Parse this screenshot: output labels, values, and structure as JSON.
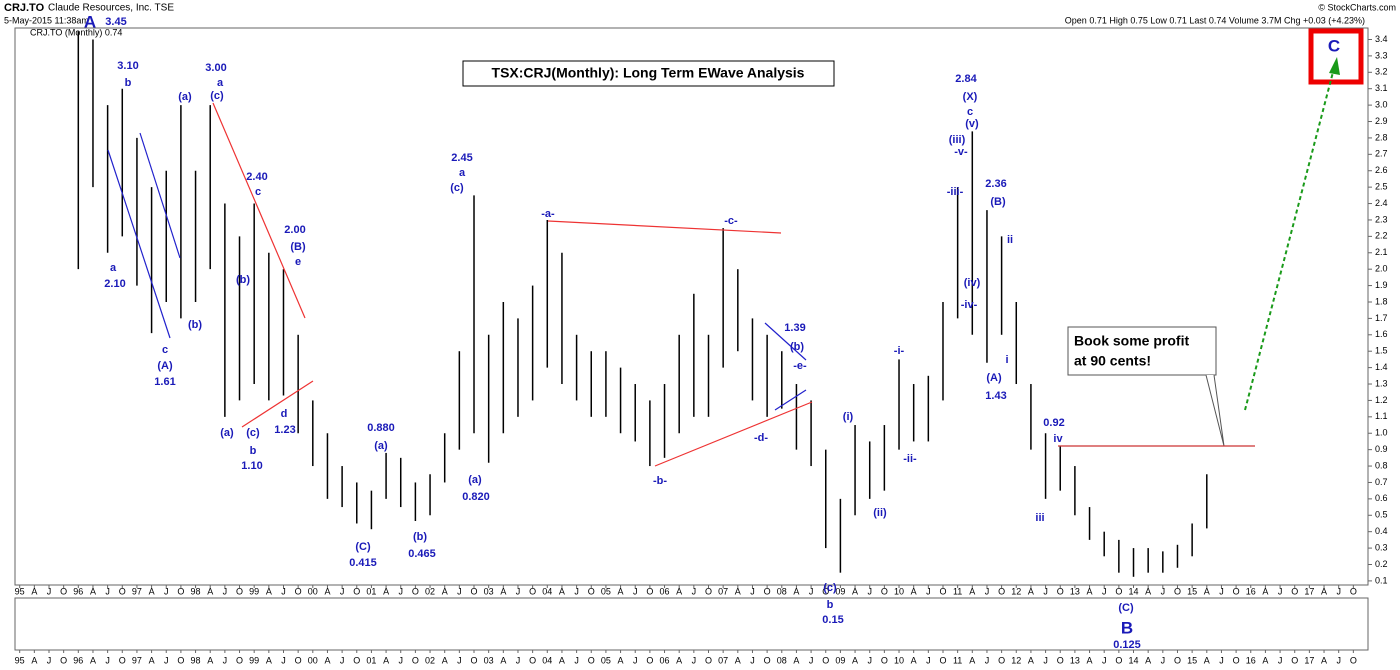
{
  "chart_data": {
    "type": "ohlc",
    "header": {
      "symbol": "CRJ.TO",
      "company": "Claude Resources, Inc. TSE",
      "timestamp": "5-May-2015 11:38am",
      "source": "© StockCharts.com",
      "legend": "CRJ.TO (Monthly) 0.74",
      "quote": "Open 0.71 High 0.75 Low 0.71 Last 0.74 Volume 3.7M Chg +0.03 (+4.23%)"
    },
    "title": "TSX:CRJ(Monthly): Long Term EWave Analysis",
    "callout": [
      "Book some profit",
      "at 90 cents!"
    ],
    "color": "#000000",
    "x": [
      1996.0,
      1996.25,
      1996.5,
      1996.75,
      1997.0,
      1997.25,
      1997.5,
      1997.75,
      1998.0,
      1998.25,
      1998.5,
      1998.75,
      1999.0,
      1999.25,
      1999.5,
      1999.75,
      2000.0,
      2000.25,
      2000.5,
      2000.75,
      2001.0,
      2001.25,
      2001.5,
      2001.75,
      2002.0,
      2002.25,
      2002.5,
      2002.75,
      2003.0,
      2003.25,
      2003.5,
      2003.75,
      2004.0,
      2004.25,
      2004.5,
      2004.75,
      2005.0,
      2005.25,
      2005.5,
      2005.75,
      2006.0,
      2006.25,
      2006.5,
      2006.75,
      2007.0,
      2007.25,
      2007.5,
      2007.75,
      2008.0,
      2008.25,
      2008.5,
      2008.75,
      2009.0,
      2009.25,
      2009.5,
      2009.75,
      2010.0,
      2010.25,
      2010.5,
      2010.75,
      2011.0,
      2011.25,
      2011.5,
      2011.75,
      2012.0,
      2012.25,
      2012.5,
      2012.75,
      2013.0,
      2013.25,
      2013.5,
      2013.75,
      2014.0,
      2014.25,
      2014.5,
      2014.75,
      2015.0,
      2015.25
    ],
    "high": [
      3.45,
      3.4,
      3.0,
      3.1,
      2.8,
      2.5,
      2.6,
      3.0,
      2.6,
      3.0,
      2.4,
      2.2,
      2.4,
      2.1,
      2.0,
      1.6,
      1.2,
      1.0,
      0.8,
      0.7,
      0.65,
      0.88,
      0.85,
      0.7,
      0.75,
      1.0,
      1.5,
      2.45,
      1.6,
      1.8,
      1.7,
      1.9,
      2.3,
      2.1,
      1.6,
      1.5,
      1.5,
      1.4,
      1.3,
      1.2,
      1.3,
      1.6,
      1.85,
      1.6,
      2.25,
      2.0,
      1.7,
      1.6,
      1.5,
      1.3,
      1.2,
      0.9,
      0.6,
      1.05,
      0.95,
      1.05,
      1.45,
      1.3,
      1.35,
      1.8,
      2.5,
      2.84,
      2.36,
      2.2,
      1.8,
      1.3,
      1.0,
      0.92,
      0.8,
      0.55,
      0.4,
      0.35,
      0.3,
      0.3,
      0.28,
      0.32,
      0.45,
      0.75
    ],
    "low": [
      2.0,
      2.5,
      2.1,
      2.2,
      1.9,
      1.61,
      1.8,
      1.7,
      1.8,
      2.0,
      1.1,
      1.2,
      1.3,
      1.2,
      1.23,
      1.0,
      0.8,
      0.6,
      0.55,
      0.45,
      0.415,
      0.6,
      0.55,
      0.465,
      0.5,
      0.7,
      0.9,
      1.0,
      0.82,
      1.0,
      1.1,
      1.2,
      1.4,
      1.3,
      1.2,
      1.1,
      1.1,
      1.0,
      0.95,
      0.8,
      0.85,
      1.0,
      1.1,
      1.1,
      1.4,
      1.5,
      1.2,
      1.1,
      1.15,
      0.9,
      0.8,
      0.3,
      0.15,
      0.5,
      0.6,
      0.65,
      0.9,
      0.95,
      0.95,
      1.2,
      1.7,
      1.6,
      1.43,
      1.6,
      1.3,
      0.9,
      0.6,
      0.65,
      0.5,
      0.35,
      0.25,
      0.15,
      0.125,
      0.15,
      0.15,
      0.18,
      0.25,
      0.42
    ],
    "xlim": [
      1994.92,
      2018.0
    ],
    "ylim": [
      0.075,
      3.47
    ],
    "yticks": [
      0.1,
      0.2,
      0.3,
      0.4,
      0.5,
      0.6,
      0.7,
      0.8,
      0.9,
      {
        "value": 1,
        "label": "1.0"
      },
      1.1,
      1.2,
      1.3,
      1.4,
      1.5,
      1.6,
      1.7,
      1.8,
      1.9,
      {
        "value": 2,
        "label": "2.0"
      },
      2.1,
      2.2,
      2.3,
      2.4,
      2.5,
      2.6,
      2.7,
      2.8,
      2.9,
      {
        "value": 3,
        "label": "3.0"
      },
      3.1,
      3.2,
      3.3,
      3.4
    ],
    "xticks": [
      {
        "value": 1995,
        "label": "95"
      },
      {
        "value": 1995.25,
        "label": "A"
      },
      {
        "value": 1995.5,
        "label": "J"
      },
      {
        "value": 1995.75,
        "label": "O"
      },
      {
        "value": 1996,
        "label": "96"
      },
      {
        "value": 1996.25,
        "label": "A"
      },
      {
        "value": 1996.5,
        "label": "J"
      },
      {
        "value": 1996.75,
        "label": "O"
      },
      {
        "value": 1997,
        "label": "97"
      },
      {
        "value": 1997.25,
        "label": "A"
      },
      {
        "value": 1997.5,
        "label": "J"
      },
      {
        "value": 1997.75,
        "label": "O"
      },
      {
        "value": 1998,
        "label": "98"
      },
      {
        "value": 1998.25,
        "label": "A"
      },
      {
        "value": 1998.5,
        "label": "J"
      },
      {
        "value": 1998.75,
        "label": "O"
      },
      {
        "value": 1999,
        "label": "99"
      },
      {
        "value": 1999.25,
        "label": "A"
      },
      {
        "value": 1999.5,
        "label": "J"
      },
      {
        "value": 1999.75,
        "label": "O"
      },
      {
        "value": 2000,
        "label": "00"
      },
      {
        "value": 2000.25,
        "label": "A"
      },
      {
        "value": 2000.5,
        "label": "J"
      },
      {
        "value": 2000.75,
        "label": "O"
      },
      {
        "value": 2001,
        "label": "01"
      },
      {
        "value": 2001.25,
        "label": "A"
      },
      {
        "value": 2001.5,
        "label": "J"
      },
      {
        "value": 2001.75,
        "label": "O"
      },
      {
        "value": 2002,
        "label": "02"
      },
      {
        "value": 2002.25,
        "label": "A"
      },
      {
        "value": 2002.5,
        "label": "J"
      },
      {
        "value": 2002.75,
        "label": "O"
      },
      {
        "value": 2003,
        "label": "03"
      },
      {
        "value": 2003.25,
        "label": "A"
      },
      {
        "value": 2003.5,
        "label": "J"
      },
      {
        "value": 2003.75,
        "label": "O"
      },
      {
        "value": 2004,
        "label": "04"
      },
      {
        "value": 2004.25,
        "label": "A"
      },
      {
        "value": 2004.5,
        "label": "J"
      },
      {
        "value": 2004.75,
        "label": "O"
      },
      {
        "value": 2005,
        "label": "05"
      },
      {
        "value": 2005.25,
        "label": "A"
      },
      {
        "value": 2005.5,
        "label": "J"
      },
      {
        "value": 2005.75,
        "label": "O"
      },
      {
        "value": 2006,
        "label": "06"
      },
      {
        "value": 2006.25,
        "label": "A"
      },
      {
        "value": 2006.5,
        "label": "J"
      },
      {
        "value": 2006.75,
        "label": "O"
      },
      {
        "value": 2007,
        "label": "07"
      },
      {
        "value": 2007.25,
        "label": "A"
      },
      {
        "value": 2007.5,
        "label": "J"
      },
      {
        "value": 2007.75,
        "label": "O"
      },
      {
        "value": 2008,
        "label": "08"
      },
      {
        "value": 2008.25,
        "label": "A"
      },
      {
        "value": 2008.5,
        "label": "J"
      },
      {
        "value": 2008.75,
        "label": "O"
      },
      {
        "value": 2009,
        "label": "09"
      },
      {
        "value": 2009.25,
        "label": "A"
      },
      {
        "value": 2009.5,
        "label": "J"
      },
      {
        "value": 2009.75,
        "label": "O"
      },
      {
        "value": 2010,
        "label": "10"
      },
      {
        "value": 2010.25,
        "label": "A"
      },
      {
        "value": 2010.5,
        "label": "J"
      },
      {
        "value": 2010.75,
        "label": "O"
      },
      {
        "value": 2011,
        "label": "11"
      },
      {
        "value": 2011.25,
        "label": "A"
      },
      {
        "value": 2011.5,
        "label": "J"
      },
      {
        "value": 2011.75,
        "label": "O"
      },
      {
        "value": 2012,
        "label": "12"
      },
      {
        "value": 2012.25,
        "label": "A"
      },
      {
        "value": 2012.5,
        "label": "J"
      },
      {
        "value": 2012.75,
        "label": "O"
      },
      {
        "value": 2013,
        "label": "13"
      },
      {
        "value": 2013.25,
        "label": "A"
      },
      {
        "value": 2013.5,
        "label": "J"
      },
      {
        "value": 2013.75,
        "label": "O"
      },
      {
        "value": 2014,
        "label": "14"
      },
      {
        "value": 2014.25,
        "label": "A"
      },
      {
        "value": 2014.5,
        "label": "J"
      },
      {
        "value": 2014.75,
        "label": "O"
      },
      {
        "value": 2015,
        "label": "15"
      },
      {
        "value": 2015.25,
        "label": "A"
      },
      {
        "value": 2015.5,
        "label": "J"
      },
      {
        "value": 2015.75,
        "label": "O"
      },
      {
        "value": 2016,
        "label": "16"
      },
      {
        "value": 2016.25,
        "label": "A"
      },
      {
        "value": 2016.5,
        "label": "J"
      },
      {
        "value": 2016.75,
        "label": "O"
      },
      {
        "value": 2017,
        "label": "17"
      },
      {
        "value": 2017.25,
        "label": "A"
      },
      {
        "value": 2017.5,
        "label": "J"
      },
      {
        "value": 2017.75,
        "label": "O"
      }
    ],
    "grid": false,
    "annotations": [
      "A",
      "3.45",
      "3.10",
      "b",
      "a",
      "2.10",
      "c",
      "(A)",
      "1.61",
      "(b)",
      "(a)",
      "3.00",
      "a",
      "(c)",
      "2.40",
      "c",
      "2.00",
      "(B)",
      "e",
      "(b)",
      "(a)",
      "(c)",
      "b",
      "1.10",
      "d",
      "1.23",
      "0.880",
      "(a)",
      "(C)",
      "0.415",
      "(b)",
      "0.465",
      "2.45",
      "a",
      "(c)",
      "(a)",
      "0.820",
      "-a-",
      "-b-",
      "-c-",
      "-d-",
      "-e-",
      "1.39",
      "(b)",
      "(c)",
      "b",
      "0.15",
      "(i)",
      "(ii)",
      "-i-",
      "-ii-",
      "2.84",
      "(X)",
      "c",
      "(v)",
      "(iii)",
      "-v-",
      "-iii-",
      "2.36",
      "(B)",
      "ii",
      "(iv)",
      "-iv-",
      "i",
      "(A)",
      "1.43",
      "0.92",
      "iv",
      "iii",
      "(C)",
      "B",
      "0.125",
      "C"
    ]
  }
}
